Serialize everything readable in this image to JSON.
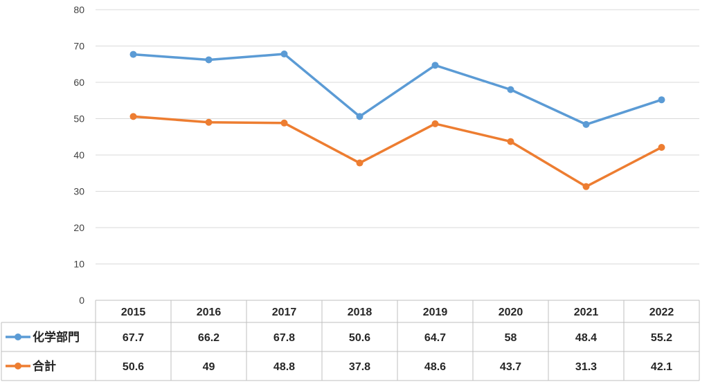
{
  "chart_data": {
    "type": "line",
    "categories": [
      "2015",
      "2016",
      "2017",
      "2018",
      "2019",
      "2020",
      "2021",
      "2022"
    ],
    "series": [
      {
        "name": "化学部門",
        "color": "#5B9BD5",
        "values": [
          67.7,
          66.2,
          67.8,
          50.6,
          64.7,
          58,
          48.4,
          55.2
        ],
        "labels": [
          "67.7",
          "66.2",
          "67.8",
          "50.6",
          "64.7",
          "58",
          "48.4",
          "55.2"
        ]
      },
      {
        "name": "合計",
        "color": "#ED7D31",
        "values": [
          50.6,
          49,
          48.8,
          37.8,
          48.6,
          43.7,
          31.3,
          42.1
        ],
        "labels": [
          "50.6",
          "49",
          "48.8",
          "37.8",
          "48.6",
          "43.7",
          "31.3",
          "42.1"
        ]
      }
    ],
    "ylim": [
      0,
      80
    ],
    "yticks": [
      "0",
      "10",
      "20",
      "30",
      "40",
      "50",
      "60",
      "70",
      "80"
    ],
    "grid": true,
    "data_table": true,
    "legend": "data-table-left"
  }
}
